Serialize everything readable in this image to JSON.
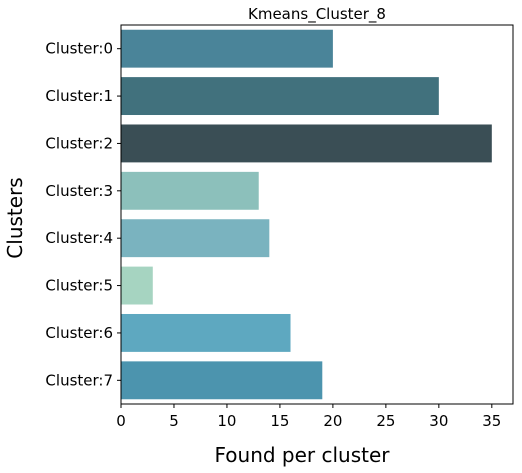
{
  "chart_data": {
    "type": "bar",
    "orientation": "horizontal",
    "title": "Kmeans_Cluster_8",
    "xlabel": "Found per cluster",
    "ylabel": "Clusters",
    "categories": [
      "Cluster:0",
      "Cluster:1",
      "Cluster:2",
      "Cluster:3",
      "Cluster:4",
      "Cluster:5",
      "Cluster:6",
      "Cluster:7"
    ],
    "values": [
      20,
      30,
      35,
      13,
      14,
      3,
      16,
      19
    ],
    "colors": [
      "#4a8499",
      "#41717d",
      "#3a4e55",
      "#8cc0bb",
      "#7ab3bf",
      "#a6d4c1",
      "#5ea8c0",
      "#4c94ae"
    ],
    "xlim": [
      0,
      37
    ],
    "xticks": [
      0,
      5,
      10,
      15,
      20,
      25,
      30,
      35
    ],
    "grid": false,
    "legend": "none"
  }
}
